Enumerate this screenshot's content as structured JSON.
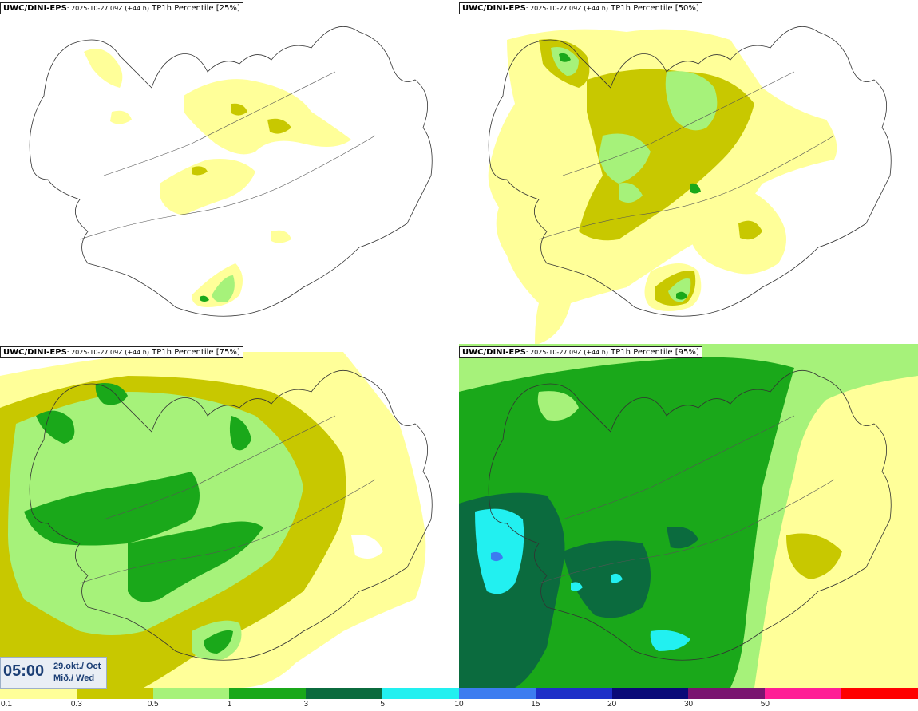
{
  "panels": [
    {
      "model": "UWC/DINI-EPS",
      "run": ": 2025-10-27 09Z (+44 h)",
      "label": "TP1h Percentile [25%]"
    },
    {
      "model": "UWC/DINI-EPS",
      "run": ": 2025-10-27 09Z (+44 h)",
      "label": "TP1h Percentile [50%]"
    },
    {
      "model": "UWC/DINI-EPS",
      "run": ": 2025-10-27 09Z (+44 h)",
      "label": "TP1h Percentile [75%]"
    },
    {
      "model": "UWC/DINI-EPS",
      "run": ": 2025-10-27 09Z (+44 h)",
      "label": "TP1h Percentile [95%]"
    }
  ],
  "time": {
    "clock": "05:00",
    "date_line1": "29.okt./ Oct",
    "date_line2": "Mið./ Wed"
  },
  "legend": {
    "colors": [
      "#ffff99",
      "#c8c800",
      "#a6f27a",
      "#1aa81a",
      "#0b6b3e",
      "#22f0f0",
      "#3c7cf0",
      "#1e2fc8",
      "#0a0a78",
      "#7a1470",
      "#ff1e96",
      "#ff0000"
    ],
    "ticks": [
      "0.1",
      "0.3",
      "0.5",
      "1",
      "3",
      "5",
      "10",
      "15",
      "20",
      "30",
      "50"
    ]
  },
  "colors": {
    "l1": "#ffff99",
    "l2": "#c8c800",
    "l3": "#a6f27a",
    "l4": "#1aa81a",
    "l5": "#0b6b3e",
    "l6": "#22f0f0",
    "l7": "#3c7cf0"
  }
}
